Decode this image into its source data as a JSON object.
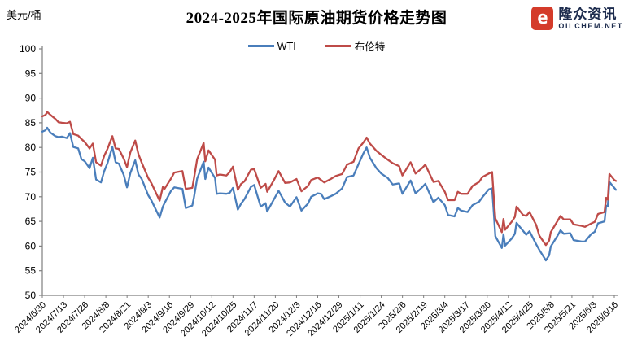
{
  "page": {
    "unit_label": "美元/桶",
    "title": "2024-2025年国际原油期货价格走势图"
  },
  "logo": {
    "symbol": "e",
    "name": "隆众资讯",
    "domain": "OILCHEM.NET",
    "box_color": "#d43b2a",
    "text_color": "#1d2c4e"
  },
  "chart_data": {
    "type": "line",
    "title": "2024-2025年国际原油期货价格走势图",
    "ylabel": "美元/桶",
    "xlabel": "",
    "ylim": [
      50,
      100
    ],
    "ytick_step": 5,
    "grid": false,
    "legend_position": "top-center",
    "axis_color": "#7f7f7f",
    "x_tick_labels": [
      "2024/6/30",
      "2024/7/13",
      "2024/7/26",
      "2024/8/8",
      "2024/8/21",
      "2024/9/3",
      "2024/9/16",
      "2024/9/29",
      "2024/10/12",
      "2024/10/25",
      "2024/11/7",
      "2024/11/20",
      "2024/12/3",
      "2024/12/16",
      "2024/12/29",
      "2025/1/11",
      "2025/1/24",
      "2025/2/6",
      "2025/2/19",
      "2025/3/4",
      "2025/3/17",
      "2025/3/30",
      "2025/4/12",
      "2025/4/25",
      "2025/5/8",
      "2025/5/21",
      "2025/6/3",
      "2025/6/16"
    ],
    "columns": [
      "date",
      "WTI",
      "布伦特"
    ],
    "series": [
      {
        "name": "WTI",
        "color": "#4a7ebb",
        "column": 1
      },
      {
        "name": "布伦特",
        "color": "#be4b48",
        "column": 2
      }
    ],
    "rows": [
      [
        "2024/6/30",
        83.2,
        86.3
      ],
      [
        "2024/7/2",
        83.5,
        86.6
      ],
      [
        "2024/7/3",
        84.0,
        87.2
      ],
      [
        "2024/7/5",
        83.0,
        86.6
      ],
      [
        "2024/7/8",
        82.3,
        85.8
      ],
      [
        "2024/7/10",
        82.1,
        85.1
      ],
      [
        "2024/7/12",
        82.2,
        85.0
      ],
      [
        "2024/7/15",
        81.9,
        84.9
      ],
      [
        "2024/7/17",
        82.9,
        85.2
      ],
      [
        "2024/7/19",
        80.1,
        82.7
      ],
      [
        "2024/7/22",
        79.8,
        82.4
      ],
      [
        "2024/7/24",
        77.6,
        81.7
      ],
      [
        "2024/7/26",
        77.2,
        81.1
      ],
      [
        "2024/7/29",
        75.8,
        79.8
      ],
      [
        "2024/7/31",
        77.9,
        80.8
      ],
      [
        "2024/8/2",
        73.5,
        77.0
      ],
      [
        "2024/8/5",
        72.9,
        76.3
      ],
      [
        "2024/8/7",
        75.2,
        78.3
      ],
      [
        "2024/8/9",
        76.8,
        79.7
      ],
      [
        "2024/8/12",
        80.1,
        82.3
      ],
      [
        "2024/8/14",
        77.0,
        79.8
      ],
      [
        "2024/8/16",
        76.7,
        79.7
      ],
      [
        "2024/8/19",
        74.4,
        77.7
      ],
      [
        "2024/8/21",
        71.9,
        76.0
      ],
      [
        "2024/8/23",
        74.8,
        79.0
      ],
      [
        "2024/8/26",
        77.4,
        81.4
      ],
      [
        "2024/8/28",
        74.5,
        78.6
      ],
      [
        "2024/8/30",
        73.6,
        76.9
      ],
      [
        "2024/9/3",
        70.3,
        73.8
      ],
      [
        "2024/9/5",
        69.2,
        72.7
      ],
      [
        "2024/9/10",
        65.8,
        69.2
      ],
      [
        "2024/9/12",
        68.0,
        72.0
      ],
      [
        "2024/9/13",
        68.7,
        71.6
      ],
      [
        "2024/9/17",
        71.2,
        73.7
      ],
      [
        "2024/9/19",
        71.9,
        74.9
      ],
      [
        "2024/9/24",
        71.6,
        75.2
      ],
      [
        "2024/9/26",
        67.7,
        71.6
      ],
      [
        "2024/9/30",
        68.2,
        71.8
      ],
      [
        "2024/10/1",
        69.8,
        73.6
      ],
      [
        "2024/10/3",
        73.7,
        77.6
      ],
      [
        "2024/10/7",
        77.1,
        80.9
      ],
      [
        "2024/10/8",
        73.6,
        77.2
      ],
      [
        "2024/10/10",
        75.9,
        79.4
      ],
      [
        "2024/10/14",
        73.8,
        77.5
      ],
      [
        "2024/10/15",
        70.6,
        74.3
      ],
      [
        "2024/10/17",
        70.7,
        74.5
      ],
      [
        "2024/10/21",
        70.6,
        74.3
      ],
      [
        "2024/10/23",
        70.8,
        75.0
      ],
      [
        "2024/10/25",
        71.8,
        76.1
      ],
      [
        "2024/10/28",
        67.4,
        71.4
      ],
      [
        "2024/10/30",
        68.6,
        72.6
      ],
      [
        "2024/11/1",
        69.5,
        73.1
      ],
      [
        "2024/11/5",
        72.0,
        75.5
      ],
      [
        "2024/11/7",
        72.4,
        75.6
      ],
      [
        "2024/11/11",
        68.0,
        71.8
      ],
      [
        "2024/11/14",
        68.7,
        72.6
      ],
      [
        "2024/11/15",
        67.0,
        71.0
      ],
      [
        "2024/11/19",
        69.4,
        73.3
      ],
      [
        "2024/11/22",
        71.2,
        75.2
      ],
      [
        "2024/11/26",
        68.8,
        72.8
      ],
      [
        "2024/11/29",
        68.0,
        72.9
      ],
      [
        "2024/12/3",
        69.9,
        73.6
      ],
      [
        "2024/12/6",
        67.2,
        71.1
      ],
      [
        "2024/12/10",
        68.6,
        72.2
      ],
      [
        "2024/12/12",
        70.0,
        73.4
      ],
      [
        "2024/12/16",
        70.7,
        73.9
      ],
      [
        "2024/12/18",
        70.6,
        73.4
      ],
      [
        "2024/12/20",
        69.5,
        72.9
      ],
      [
        "2024/12/24",
        70.1,
        73.6
      ],
      [
        "2024/12/27",
        70.6,
        74.2
      ],
      [
        "2024/12/31",
        71.7,
        74.6
      ],
      [
        "2025/1/3",
        74.0,
        76.5
      ],
      [
        "2025/1/7",
        74.3,
        77.1
      ],
      [
        "2025/1/10",
        76.6,
        79.8
      ],
      [
        "2025/1/13",
        78.8,
        81.0
      ],
      [
        "2025/1/15",
        80.0,
        82.0
      ],
      [
        "2025/1/17",
        77.9,
        80.8
      ],
      [
        "2025/1/21",
        75.8,
        79.3
      ],
      [
        "2025/1/24",
        74.7,
        78.5
      ],
      [
        "2025/1/28",
        73.8,
        77.5
      ],
      [
        "2025/1/31",
        72.5,
        76.8
      ],
      [
        "2025/2/4",
        72.7,
        76.2
      ],
      [
        "2025/2/6",
        70.6,
        74.3
      ],
      [
        "2025/2/11",
        73.3,
        77.0
      ],
      [
        "2025/2/14",
        70.7,
        74.7
      ],
      [
        "2025/2/18",
        71.9,
        75.8
      ],
      [
        "2025/2/20",
        72.6,
        76.5
      ],
      [
        "2025/2/25",
        68.9,
        73.0
      ],
      [
        "2025/2/28",
        69.8,
        73.2
      ],
      [
        "2025/3/4",
        68.3,
        71.0
      ],
      [
        "2025/3/6",
        66.3,
        69.3
      ],
      [
        "2025/3/10",
        66.0,
        69.3
      ],
      [
        "2025/3/12",
        67.7,
        71.0
      ],
      [
        "2025/3/14",
        67.2,
        70.6
      ],
      [
        "2025/3/18",
        66.9,
        70.6
      ],
      [
        "2025/3/21",
        68.3,
        72.2
      ],
      [
        "2025/3/25",
        69.0,
        73.0
      ],
      [
        "2025/3/27",
        69.9,
        74.0
      ],
      [
        "2025/3/31",
        71.5,
        74.7
      ],
      [
        "2025/4/2",
        71.7,
        75.0
      ],
      [
        "2025/4/3",
        67.0,
        70.1
      ],
      [
        "2025/4/4",
        62.0,
        65.6
      ],
      [
        "2025/4/8",
        59.6,
        62.8
      ],
      [
        "2025/4/9",
        62.4,
        65.5
      ],
      [
        "2025/4/10",
        60.1,
        63.3
      ],
      [
        "2025/4/14",
        61.5,
        64.9
      ],
      [
        "2025/4/16",
        62.5,
        65.9
      ],
      [
        "2025/4/17",
        64.7,
        68.0
      ],
      [
        "2025/4/21",
        63.1,
        66.3
      ],
      [
        "2025/4/23",
        62.3,
        66.1
      ],
      [
        "2025/4/25",
        63.0,
        66.9
      ],
      [
        "2025/4/29",
        60.4,
        64.3
      ],
      [
        "2025/5/1",
        59.2,
        62.1
      ],
      [
        "2025/5/5",
        57.1,
        60.2
      ],
      [
        "2025/5/7",
        58.1,
        61.1
      ],
      [
        "2025/5/8",
        59.9,
        62.8
      ],
      [
        "2025/5/12",
        62.0,
        65.0
      ],
      [
        "2025/5/14",
        63.2,
        66.1
      ],
      [
        "2025/5/16",
        62.5,
        65.4
      ],
      [
        "2025/5/20",
        62.6,
        65.4
      ],
      [
        "2025/5/22",
        61.2,
        64.4
      ],
      [
        "2025/5/27",
        60.9,
        64.1
      ],
      [
        "2025/5/29",
        60.9,
        63.9
      ],
      [
        "2025/6/2",
        62.5,
        64.6
      ],
      [
        "2025/6/4",
        62.9,
        64.9
      ],
      [
        "2025/6/6",
        64.6,
        66.5
      ],
      [
        "2025/6/10",
        65.0,
        66.9
      ],
      [
        "2025/6/11",
        68.2,
        69.8
      ],
      [
        "2025/6/12",
        68.0,
        69.4
      ],
      [
        "2025/6/13",
        73.0,
        74.6
      ],
      [
        "2025/6/16",
        71.8,
        73.4
      ],
      [
        "2025/6/17",
        71.4,
        73.2
      ]
    ]
  }
}
